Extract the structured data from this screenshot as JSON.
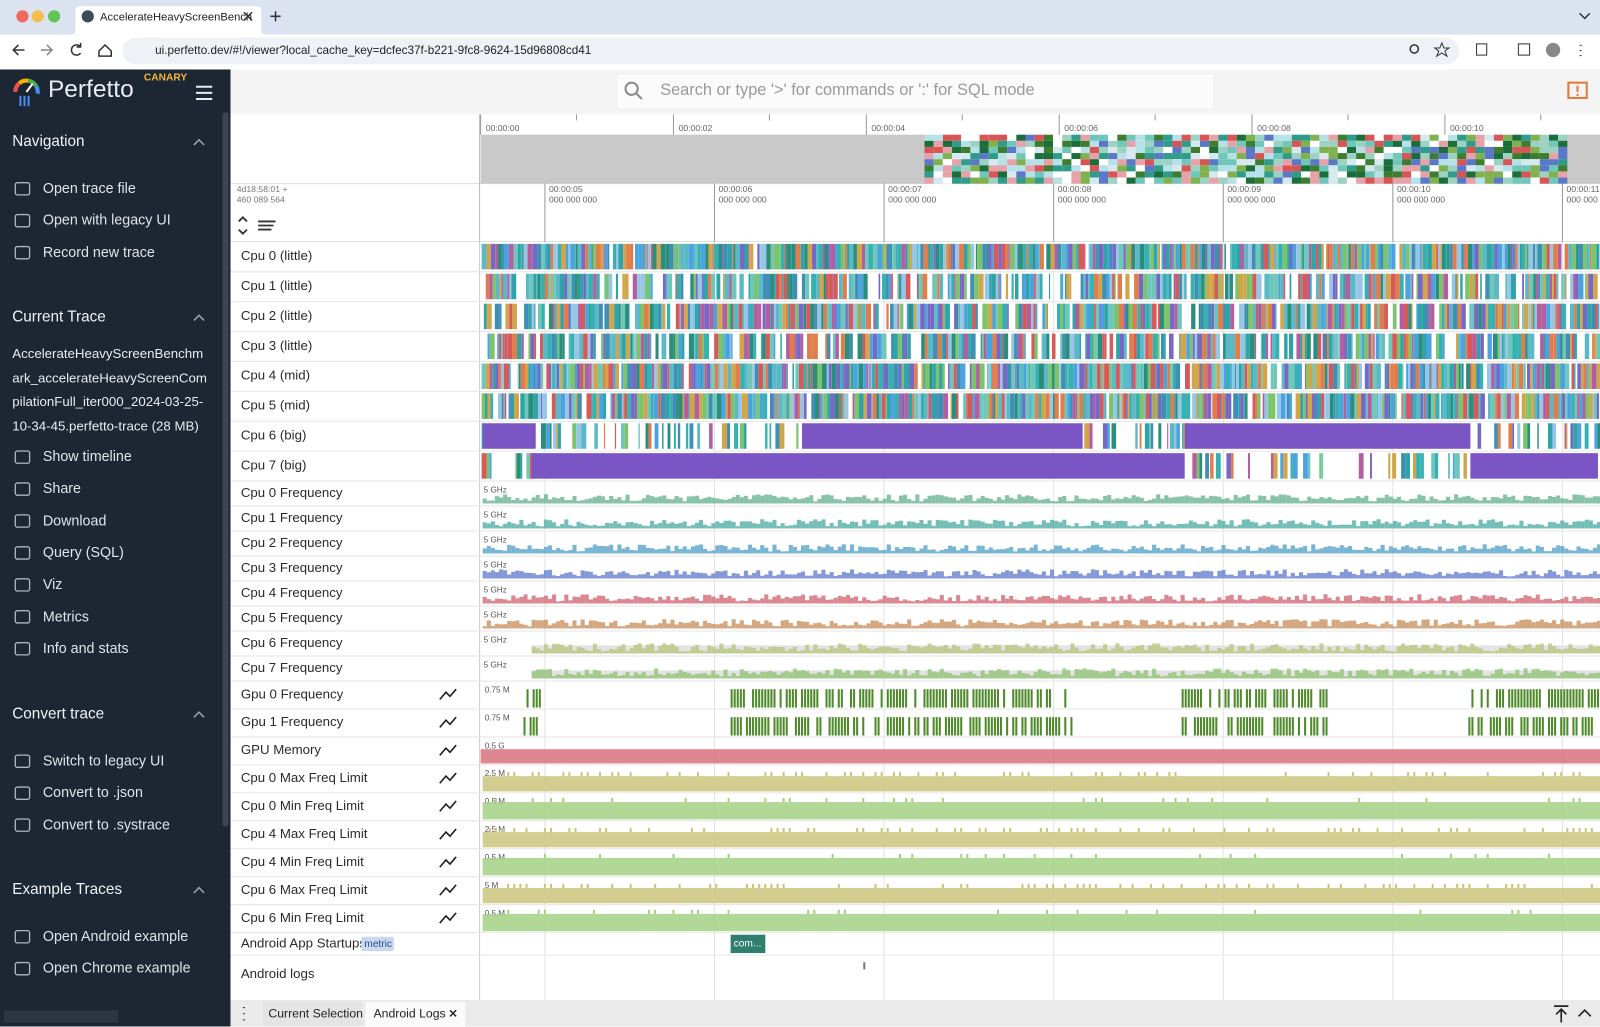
{
  "browser": {
    "tab_title": "AccelerateHeavyScreenBench",
    "url": "ui.perfetto.dev/#!/viewer?local_cache_key=dcfec37f-b221-9fc8-9624-15d96808cd41"
  },
  "app": {
    "name": "Perfetto",
    "badge": "CANARY"
  },
  "sidebar": {
    "sections": [
      {
        "title": "Navigation",
        "items": [
          "Open trace file",
          "Open with legacy UI",
          "Record new trace"
        ]
      },
      {
        "title": "Current Trace",
        "trace": "AccelerateHeavyScreenBenchmark_accelerateHeavyScreenCompilationFull_iter000_2024-03-25-10-34-45.perfetto-trace (28 MB)",
        "items": [
          "Show timeline",
          "Share",
          "Download",
          "Query (SQL)",
          "Viz",
          "Metrics",
          "Info and stats"
        ]
      },
      {
        "title": "Convert trace",
        "items": [
          "Switch to legacy UI",
          "Convert to .json",
          "Convert to .systrace"
        ]
      },
      {
        "title": "Example Traces",
        "items": [
          "Open Android example",
          "Open Chrome example"
        ]
      }
    ]
  },
  "search": {
    "placeholder": "Search or type '>' for commands or ':' for SQL mode"
  },
  "overview": {
    "ticks": [
      "00:00:00",
      "00:00:02",
      "00:00:04",
      "00:00:06",
      "00:00:08",
      "00:00:10"
    ]
  },
  "ruler": {
    "offset": [
      "4d18:58:01 +",
      "460 089 564"
    ],
    "ticks": [
      {
        "time": "00:00:05",
        "sub": "000 000 000"
      },
      {
        "time": "00:00:06",
        "sub": "000 000 000"
      },
      {
        "time": "00:00:07",
        "sub": "000 000 000"
      },
      {
        "time": "00:00:08",
        "sub": "000 000 000"
      },
      {
        "time": "00:00:09",
        "sub": "000 000 000"
      },
      {
        "time": "00:00:10",
        "sub": "000 000 000"
      },
      {
        "time": "00:00:11",
        "sub": "000 000 000"
      }
    ]
  },
  "tracks": {
    "cpu": [
      "Cpu 0 (little)",
      "Cpu 1 (little)",
      "Cpu 2 (little)",
      "Cpu 3 (little)",
      "Cpu 4 (mid)",
      "Cpu 5 (mid)",
      "Cpu 6 (big)",
      "Cpu 7 (big)"
    ],
    "frequency": [
      {
        "name": "Cpu 0 Frequency",
        "scale": "5 GHz",
        "color": "#5fae8c"
      },
      {
        "name": "Cpu 1 Frequency",
        "scale": "5 GHz",
        "color": "#46a8a0"
      },
      {
        "name": "Cpu 2 Frequency",
        "scale": "5 GHz",
        "color": "#4b9cc4"
      },
      {
        "name": "Cpu 3 Frequency",
        "scale": "5 GHz",
        "color": "#5a76c8"
      },
      {
        "name": "Cpu 4 Frequency",
        "scale": "5 GHz",
        "color": "#cf5f6e"
      },
      {
        "name": "Cpu 5 Frequency",
        "scale": "5 GHz",
        "color": "#c58a55"
      },
      {
        "name": "Cpu 6 Frequency",
        "scale": "5 GHz",
        "color": "#b5c47a"
      },
      {
        "name": "Cpu 7 Frequency",
        "scale": "5 GHz",
        "color": "#8cc270"
      }
    ],
    "counters": [
      {
        "name": "Gpu 0 Frequency",
        "scale": "0.75 M",
        "color": "#4f8a2a"
      },
      {
        "name": "Gpu 1 Frequency",
        "scale": "0.75 M",
        "color": "#4f8a2a"
      },
      {
        "name": "GPU Memory",
        "scale": "0.5 G",
        "color": "#d9727e"
      },
      {
        "name": "Cpu 0 Max Freq Limit",
        "scale": "2.5 M",
        "color": "#cbc57c"
      },
      {
        "name": "Cpu 0 Min Freq Limit",
        "scale": "0.5 M",
        "color": "#a3d184"
      },
      {
        "name": "Cpu 4 Max Freq Limit",
        "scale": "2.5 M",
        "color": "#cbc57c"
      },
      {
        "name": "Cpu 4 Min Freq Limit",
        "scale": "0.5 M",
        "color": "#a3d184"
      },
      {
        "name": "Cpu 6 Max Freq Limit",
        "scale": "5 M",
        "color": "#cbc57c"
      },
      {
        "name": "Cpu 6 Min Freq Limit",
        "scale": "0.5 M",
        "color": "#a3d184"
      }
    ],
    "startups": {
      "name": "Android App Startups",
      "tag": "metric",
      "slice": "com..."
    },
    "logs": {
      "name": "Android logs"
    }
  },
  "bottom_tabs": [
    "Current Selection",
    "Android Logs"
  ]
}
